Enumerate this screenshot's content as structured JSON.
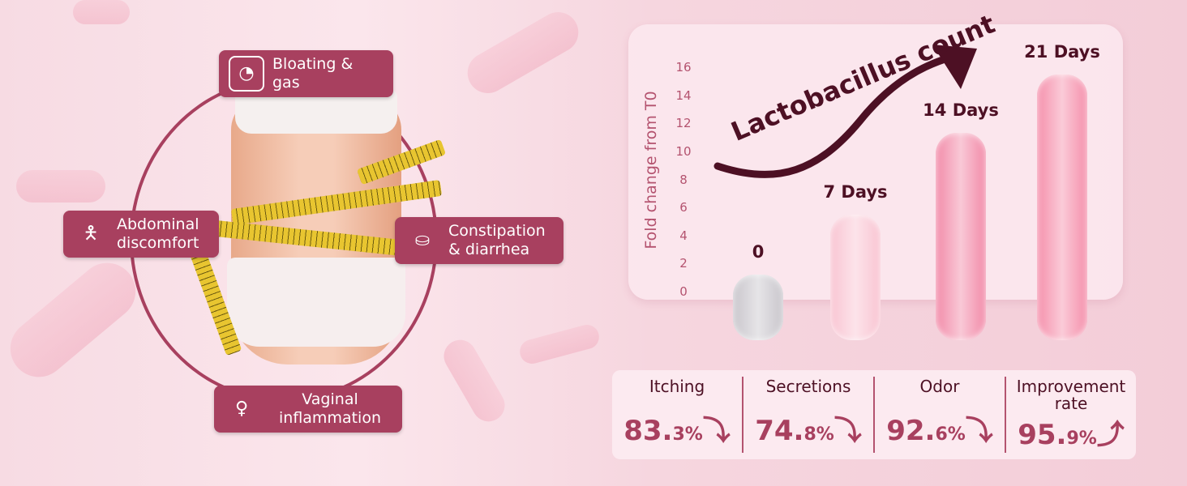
{
  "symptoms": [
    {
      "label": "Bloating & gas",
      "icon": "stomach-icon"
    },
    {
      "label": "Abdominal discomfort",
      "icon": "person-pain-icon"
    },
    {
      "label": "Constipation & diarrhea",
      "icon": "toilet-icon"
    },
    {
      "label": "Vaginal inflammation",
      "icon": "uterus-icon"
    }
  ],
  "chart_data": {
    "type": "bar",
    "title": "Lactobacillus count",
    "ylabel": "Fold change from T0",
    "ylim": [
      0,
      16
    ],
    "yticks": [
      "0",
      "2",
      "4",
      "6",
      "8",
      "10",
      "12",
      "14",
      "16"
    ],
    "categories": [
      "0",
      "7 Days",
      "14 Days",
      "21 Days"
    ],
    "values": [
      1.2,
      5.5,
      11.3,
      15.5
    ],
    "colors": [
      "#c9c6cc",
      "#f9c4d2",
      "#f28aa8",
      "#f58fab"
    ],
    "trend_arrow": "up"
  },
  "stats": [
    {
      "label": "Itching",
      "value": "83.",
      "decimal": "3%",
      "trend": "down"
    },
    {
      "label": "Secretions",
      "value": "74.",
      "decimal": "8%",
      "trend": "down"
    },
    {
      "label": "Odor",
      "value": "92.",
      "decimal": "6%",
      "trend": "down"
    },
    {
      "label": "Improvement rate",
      "value": "95.",
      "decimal": "9%",
      "trend": "up"
    }
  ],
  "colors": {
    "accent": "#a8405f",
    "dark": "#4d1024"
  }
}
